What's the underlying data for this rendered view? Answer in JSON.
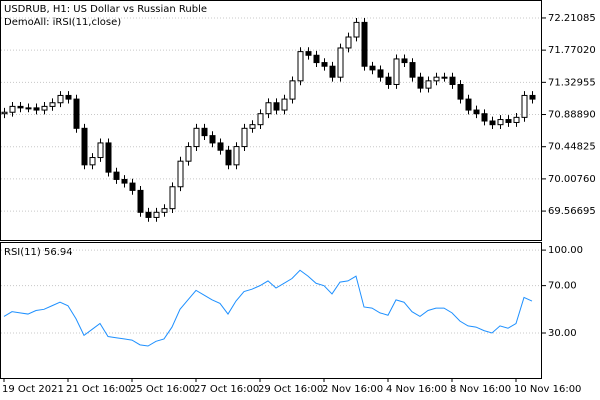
{
  "chart_data": [
    {
      "type": "candlestick",
      "title": "USDRUB, H1:  US Dollar vs Russian Ruble",
      "subtitle": "DemoAll: iRSI(11,close)",
      "categories": [
        "19 Oct 2021",
        null,
        null,
        null,
        null,
        null,
        null,
        null,
        "21 Oct 16:00",
        null,
        null,
        null,
        null,
        null,
        null,
        null,
        "25 Oct 16:00",
        null,
        null,
        null,
        null,
        null,
        null,
        null,
        "27 Oct 16:00",
        null,
        null,
        null,
        null,
        null,
        null,
        null,
        "29 Oct 16:00",
        null,
        null,
        null,
        null,
        null,
        null,
        null,
        "2 Nov 16:00",
        null,
        null,
        null,
        null,
        null,
        null,
        null,
        "4 Nov 16:00",
        null,
        null,
        null,
        null,
        null,
        null,
        null,
        "8 Nov 16:00",
        null,
        null,
        null,
        null,
        null,
        null,
        null,
        "10 Nov 16:00",
        null,
        null
      ],
      "open": [
        70.9,
        70.92,
        71.0,
        70.98,
        70.98,
        70.95,
        71.0,
        71.05,
        71.15,
        71.1,
        70.7,
        70.2,
        70.3,
        70.5,
        70.1,
        70.0,
        69.95,
        69.85,
        69.55,
        69.48,
        69.55,
        69.6,
        69.9,
        70.25,
        70.45,
        70.7,
        70.6,
        70.5,
        70.4,
        70.2,
        70.45,
        70.7,
        70.75,
        70.9,
        71.05,
        70.95,
        71.1,
        71.35,
        71.75,
        71.7,
        71.6,
        71.55,
        71.4,
        71.8,
        71.95,
        72.15,
        71.55,
        71.5,
        71.4,
        71.3,
        71.65,
        71.6,
        71.4,
        71.25,
        71.35,
        71.4,
        71.4,
        71.3,
        71.1,
        70.95,
        70.9,
        70.8,
        70.75,
        70.82,
        70.78,
        70.85,
        71.15
      ],
      "high": [
        70.98,
        71.06,
        71.06,
        71.04,
        71.04,
        71.06,
        71.11,
        71.21,
        71.21,
        71.16,
        70.76,
        70.36,
        70.56,
        70.56,
        70.16,
        70.06,
        70.01,
        69.91,
        69.61,
        69.61,
        69.66,
        69.96,
        70.31,
        70.51,
        70.76,
        70.76,
        70.66,
        70.56,
        70.46,
        70.51,
        70.76,
        70.81,
        70.96,
        71.11,
        71.11,
        71.16,
        71.41,
        71.81,
        71.81,
        71.76,
        71.66,
        71.61,
        71.86,
        72.01,
        72.21,
        72.21,
        71.61,
        71.56,
        71.46,
        71.71,
        71.71,
        71.66,
        71.46,
        71.41,
        71.46,
        71.46,
        71.46,
        71.36,
        71.16,
        71.01,
        70.96,
        70.86,
        70.88,
        70.88,
        70.91,
        71.21,
        71.21
      ],
      "low": [
        70.84,
        70.86,
        70.92,
        70.92,
        70.89,
        70.89,
        70.94,
        70.99,
        71.04,
        70.64,
        70.14,
        70.14,
        70.24,
        70.04,
        69.94,
        69.89,
        69.79,
        69.49,
        69.42,
        69.42,
        69.49,
        69.54,
        69.84,
        70.19,
        70.39,
        70.54,
        70.44,
        70.34,
        70.14,
        70.14,
        70.39,
        70.64,
        70.69,
        70.84,
        70.89,
        70.89,
        71.04,
        71.29,
        71.64,
        71.54,
        71.49,
        71.34,
        71.34,
        71.74,
        71.89,
        71.49,
        71.44,
        71.34,
        71.24,
        71.24,
        71.54,
        71.34,
        71.19,
        71.19,
        71.29,
        71.34,
        71.24,
        71.04,
        70.89,
        70.84,
        70.74,
        70.69,
        70.69,
        70.72,
        70.72,
        70.79,
        71.04
      ],
      "close": [
        70.92,
        71.0,
        70.98,
        70.98,
        70.95,
        71.0,
        71.05,
        71.15,
        71.1,
        70.7,
        70.2,
        70.3,
        70.5,
        70.1,
        70.0,
        69.95,
        69.85,
        69.55,
        69.48,
        69.55,
        69.6,
        69.9,
        70.25,
        70.45,
        70.7,
        70.6,
        70.5,
        70.4,
        70.2,
        70.45,
        70.7,
        70.75,
        70.9,
        71.05,
        70.95,
        71.1,
        71.35,
        71.75,
        71.7,
        71.6,
        71.55,
        71.4,
        71.8,
        71.95,
        72.15,
        71.55,
        71.5,
        71.4,
        71.3,
        71.65,
        71.6,
        71.4,
        71.25,
        71.35,
        71.4,
        71.4,
        71.3,
        71.1,
        70.95,
        70.9,
        70.8,
        70.75,
        70.82,
        70.78,
        70.85,
        71.15,
        71.1
      ],
      "ylim": [
        69.171,
        72.443
      ],
      "yticks": [
        72.21085,
        {
          "value": 71.7702,
          "label": "71.77020"
        },
        71.32955,
        {
          "value": 70.8889,
          "label": "70.88890"
        },
        70.44825,
        {
          "value": 70.0076,
          "label": "70.00760"
        },
        69.56695
      ],
      "up_color": "#ffffff",
      "down_color": "#000000",
      "grid": true
    },
    {
      "type": "line",
      "title": "RSI(11) 56.94",
      "color": "#1e90ff",
      "values": [
        44,
        48,
        47,
        46,
        49,
        50,
        53,
        56,
        53,
        42,
        28,
        33,
        38,
        27,
        26,
        25,
        24,
        20,
        19,
        23,
        25,
        35,
        50,
        58,
        66,
        62,
        58,
        55,
        46,
        57,
        65,
        67,
        70,
        74,
        68,
        72,
        76,
        83,
        78,
        72,
        70,
        63,
        73,
        74,
        78,
        52,
        51,
        47,
        45,
        58,
        56,
        48,
        44,
        49,
        51,
        51,
        47,
        40,
        36,
        35,
        32,
        30,
        36,
        34,
        38,
        60,
        56.94
      ],
      "ylim": [
        -8,
        106
      ],
      "yticks": [
        {
          "value": 100,
          "label": "100.00"
        },
        {
          "value": 70,
          "label": "70.00"
        },
        {
          "value": 30,
          "label": "30.00"
        }
      ],
      "grid": true
    }
  ]
}
